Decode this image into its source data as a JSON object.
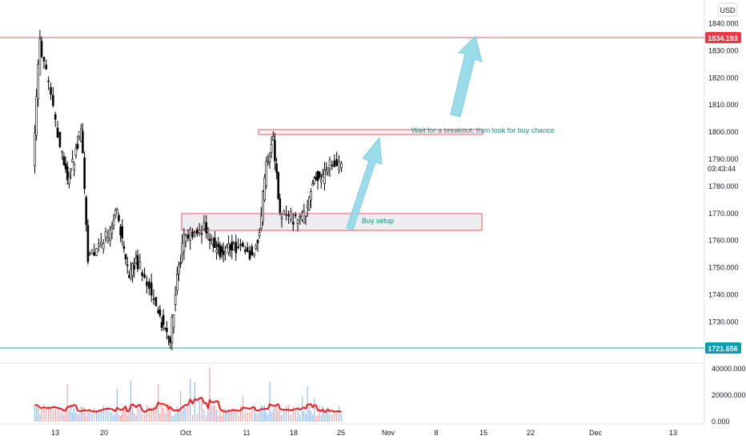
{
  "currency": "USD",
  "price_badges": {
    "top": {
      "value": "1834.193",
      "color": "#f23645"
    },
    "bottom": {
      "value": "1721.656",
      "color": "#089cb5"
    },
    "countdown": "03:43:44"
  },
  "annotations": {
    "breakout": "Wait for a breakout, then look for buy chance",
    "buy_setup": "Buy setup"
  },
  "colors": {
    "up": "#ffffff",
    "down": "#000000",
    "wick": "#000000",
    "zone_fill": "#e8e9ef",
    "zone_border": "#f7525f",
    "resistance_line": "#f7525f",
    "support_line": "#22ab94",
    "arrow": "#8fd8e8",
    "label_text": "#089981",
    "volume_up": "#90bff9",
    "volume_down": "#faa1a4",
    "volume_ma": "#f21c1c"
  },
  "chart_data": {
    "type": "candlestick",
    "price_axis": {
      "ticks": [
        "1840.000",
        "1830.000",
        "1820.000",
        "1810.000",
        "1800.000",
        "1790.000",
        "1780.000",
        "1770.000",
        "1760.000",
        "1750.000",
        "1740.000",
        "1730.000"
      ],
      "range": [
        1718,
        1845
      ]
    },
    "volume_axis": {
      "ticks": [
        "40000.000",
        "20000.000",
        "0.000"
      ],
      "range": [
        0,
        45000
      ]
    },
    "x_axis": {
      "ticks": [
        "13",
        "20",
        "Oct",
        "11",
        "18",
        "25",
        "Nov",
        "8",
        "15",
        "22",
        "Dec",
        "13"
      ]
    },
    "horizontal_lines": {
      "resistance": 1834.193,
      "support": 1721.656
    },
    "zones": [
      {
        "name": "breakout-zone",
        "low": 1799,
        "high": 1801
      },
      {
        "name": "buy-zone",
        "low": 1764.5,
        "high": 1770.5
      }
    ],
    "arrows": [
      {
        "from": {
          "date": "2021-10-25",
          "price": 1768
        },
        "to": {
          "date": "2021-10-28",
          "price": 1798
        }
      },
      {
        "from": {
          "date": "2021-11-14",
          "price": 1805
        },
        "to": {
          "date": "2021-11-17",
          "price": 1834
        }
      }
    ],
    "close_path": [
      {
        "date": "2021-09-09",
        "close": 1790
      },
      {
        "date": "2021-09-10",
        "close": 1834
      },
      {
        "date": "2021-09-13",
        "close": 1795
      },
      {
        "date": "2021-09-14",
        "close": 1783
      },
      {
        "date": "2021-09-15",
        "close": 1790
      },
      {
        "date": "2021-09-16",
        "close": 1802
      },
      {
        "date": "2021-09-17",
        "close": 1754
      },
      {
        "date": "2021-09-20",
        "close": 1762
      },
      {
        "date": "2021-09-21",
        "close": 1772
      },
      {
        "date": "2021-09-22",
        "close": 1760
      },
      {
        "date": "2021-09-23",
        "close": 1745
      },
      {
        "date": "2021-09-24",
        "close": 1754
      },
      {
        "date": "2021-09-27",
        "close": 1736
      },
      {
        "date": "2021-09-28",
        "close": 1728
      },
      {
        "date": "2021-09-29",
        "close": 1724
      },
      {
        "date": "2021-09-30",
        "close": 1746
      },
      {
        "date": "2021-10-01",
        "close": 1760
      },
      {
        "date": "2021-10-04",
        "close": 1765
      },
      {
        "date": "2021-10-05",
        "close": 1760
      },
      {
        "date": "2021-10-06",
        "close": 1756
      },
      {
        "date": "2021-10-07",
        "close": 1757
      },
      {
        "date": "2021-10-08",
        "close": 1758
      },
      {
        "date": "2021-10-11",
        "close": 1755
      },
      {
        "date": "2021-10-12",
        "close": 1762
      },
      {
        "date": "2021-10-13",
        "close": 1789
      },
      {
        "date": "2021-10-14",
        "close": 1797
      },
      {
        "date": "2021-10-15",
        "close": 1770
      },
      {
        "date": "2021-10-18",
        "close": 1767
      },
      {
        "date": "2021-10-19",
        "close": 1772
      },
      {
        "date": "2021-10-20",
        "close": 1784
      },
      {
        "date": "2021-10-21",
        "close": 1782
      },
      {
        "date": "2021-10-22",
        "close": 1787
      }
    ]
  }
}
